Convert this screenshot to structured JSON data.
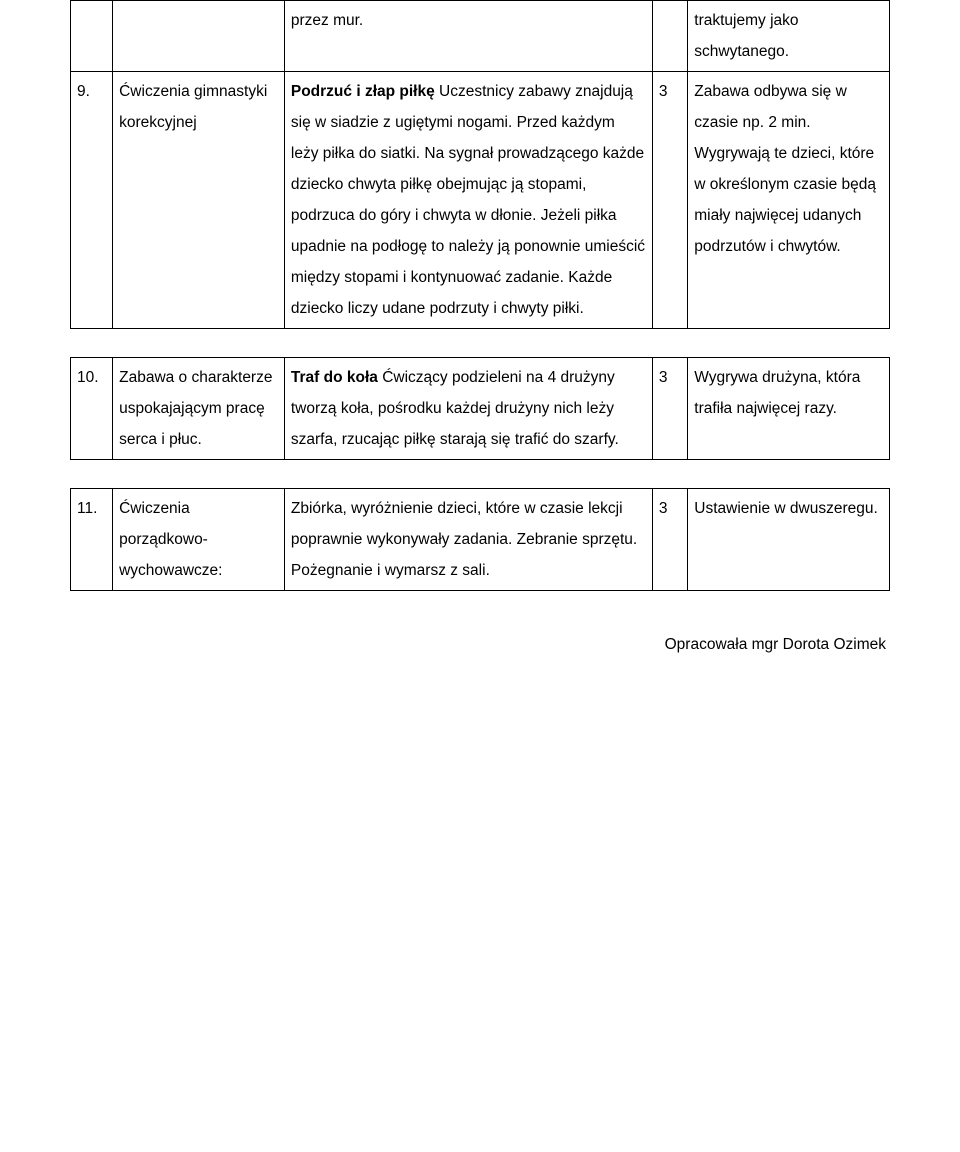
{
  "rows": [
    {
      "num": "",
      "type": "",
      "desc_plain_pre": "przez mur.",
      "min": "",
      "notes": "traktujemy jako schwytanego."
    },
    {
      "num": "9.",
      "type": "Ćwiczenia gimnastyki korekcyjnej",
      "desc_bold": "Podrzuć i złap piłkę",
      "desc_plain": "Uczestnicy zabawy znajdują się w siadzie z ugiętymi nogami. Przed każdym leży piłka do siatki. Na sygnał prowadzącego każde dziecko chwyta piłkę obejmując ją stopami, podrzuca do góry i chwyta w dłonie. Jeżeli piłka upadnie na podłogę to należy ją ponownie umieścić między stopami i kontynuować zadanie. Każde dziecko liczy udane podrzuty  i chwyty piłki.",
      "min": "3",
      "notes": "Zabawa odbywa się w czasie np. 2 min. Wygrywają te dzieci, które w określonym czasie będą miały najwięcej udanych podrzutów i chwytów."
    },
    {
      "num": "10.",
      "type": "Zabawa o charakterze uspokajającym pracę serca i płuc.",
      "desc_bold": "Traf do koła",
      "desc_plain": "Ćwiczący podzieleni na 4 drużyny tworzą koła, pośrodku każdej drużyny nich leży szarfa, rzucając piłkę starają się trafić do szarfy.",
      "min": "3",
      "notes": "Wygrywa drużyna, która trafiła najwięcej razy."
    },
    {
      "num": "11.",
      "type": "Ćwiczenia porządkowo-wychowawcze:",
      "desc_plain_only": "Zbiórka, wyróżnienie dzieci, które w czasie lekcji poprawnie wykonywały zadania. Zebranie sprzętu. Pożegnanie i wymarsz z sali.",
      "min": "3",
      "notes": "Ustawienie w dwuszeregu."
    }
  ],
  "footer": "Opracowała mgr Dorota Ozimek"
}
